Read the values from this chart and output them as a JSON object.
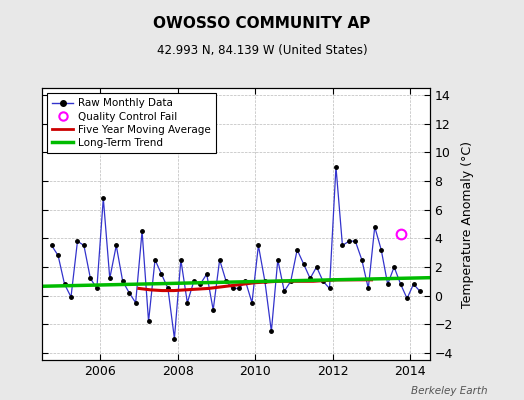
{
  "title": "OWOSSO COMMUNITY AP",
  "subtitle": "42.993 N, 84.139 W (United States)",
  "ylabel": "Temperature Anomaly (°C)",
  "footer": "Berkeley Earth",
  "xlim": [
    2004.5,
    2014.5
  ],
  "ylim": [
    -4.5,
    14.5
  ],
  "yticks": [
    -4,
    -2,
    0,
    2,
    4,
    6,
    8,
    10,
    12,
    14
  ],
  "xticks": [
    2006,
    2008,
    2010,
    2012,
    2014
  ],
  "background_color": "#e8e8e8",
  "plot_background": "#ffffff",
  "raw_color": "#3333cc",
  "ma_color": "#cc0000",
  "trend_color": "#00bb00",
  "qc_color": "#ff00ff",
  "raw_x": [
    2004.75,
    2004.917,
    2005.083,
    2005.25,
    2005.417,
    2005.583,
    2005.75,
    2005.917,
    2006.083,
    2006.25,
    2006.417,
    2006.583,
    2006.75,
    2006.917,
    2007.083,
    2007.25,
    2007.417,
    2007.583,
    2007.75,
    2007.917,
    2008.083,
    2008.25,
    2008.417,
    2008.583,
    2008.75,
    2008.917,
    2009.083,
    2009.25,
    2009.417,
    2009.583,
    2009.75,
    2009.917,
    2010.083,
    2010.25,
    2010.417,
    2010.583,
    2010.75,
    2010.917,
    2011.083,
    2011.25,
    2011.417,
    2011.583,
    2011.75,
    2011.917,
    2012.083,
    2012.25,
    2012.417,
    2012.583,
    2012.75,
    2012.917,
    2013.083,
    2013.25,
    2013.417,
    2013.583,
    2013.75,
    2013.917,
    2014.083,
    2014.25
  ],
  "raw_y": [
    3.5,
    2.8,
    0.8,
    -0.1,
    3.8,
    3.5,
    1.2,
    0.5,
    6.8,
    1.2,
    3.5,
    1.0,
    0.2,
    -0.5,
    4.5,
    -1.8,
    2.5,
    1.5,
    0.5,
    -3.0,
    2.5,
    -0.5,
    1.0,
    0.8,
    1.5,
    -1.0,
    2.5,
    1.0,
    0.5,
    0.5,
    1.0,
    -0.5,
    3.5,
    1.0,
    -2.5,
    2.5,
    0.3,
    1.0,
    3.2,
    2.2,
    1.2,
    2.0,
    1.0,
    0.5,
    9.0,
    3.5,
    3.8,
    3.8,
    2.5,
    0.5,
    4.8,
    3.2,
    0.8,
    2.0,
    0.8,
    -0.2,
    0.8,
    0.3
  ],
  "ma_x": [
    2007.0,
    2007.3,
    2007.6,
    2007.9,
    2008.2,
    2008.5,
    2008.8,
    2009.1,
    2009.4,
    2009.7,
    2010.0,
    2010.3,
    2010.6,
    2010.9,
    2011.2,
    2011.5,
    2011.8,
    2012.1,
    2012.4,
    2012.7,
    2013.0
  ],
  "ma_y": [
    0.5,
    0.4,
    0.35,
    0.35,
    0.4,
    0.45,
    0.5,
    0.6,
    0.7,
    0.8,
    0.9,
    0.95,
    1.0,
    1.0,
    1.0,
    1.0,
    1.05,
    1.1,
    1.1,
    1.1,
    1.1
  ],
  "trend_x": [
    2004.5,
    2014.5
  ],
  "trend_y": [
    0.65,
    1.25
  ],
  "qc_x": [
    2013.75
  ],
  "qc_y": [
    4.3
  ],
  "legend_labels": [
    "Raw Monthly Data",
    "Quality Control Fail",
    "Five Year Moving Average",
    "Long-Term Trend"
  ]
}
